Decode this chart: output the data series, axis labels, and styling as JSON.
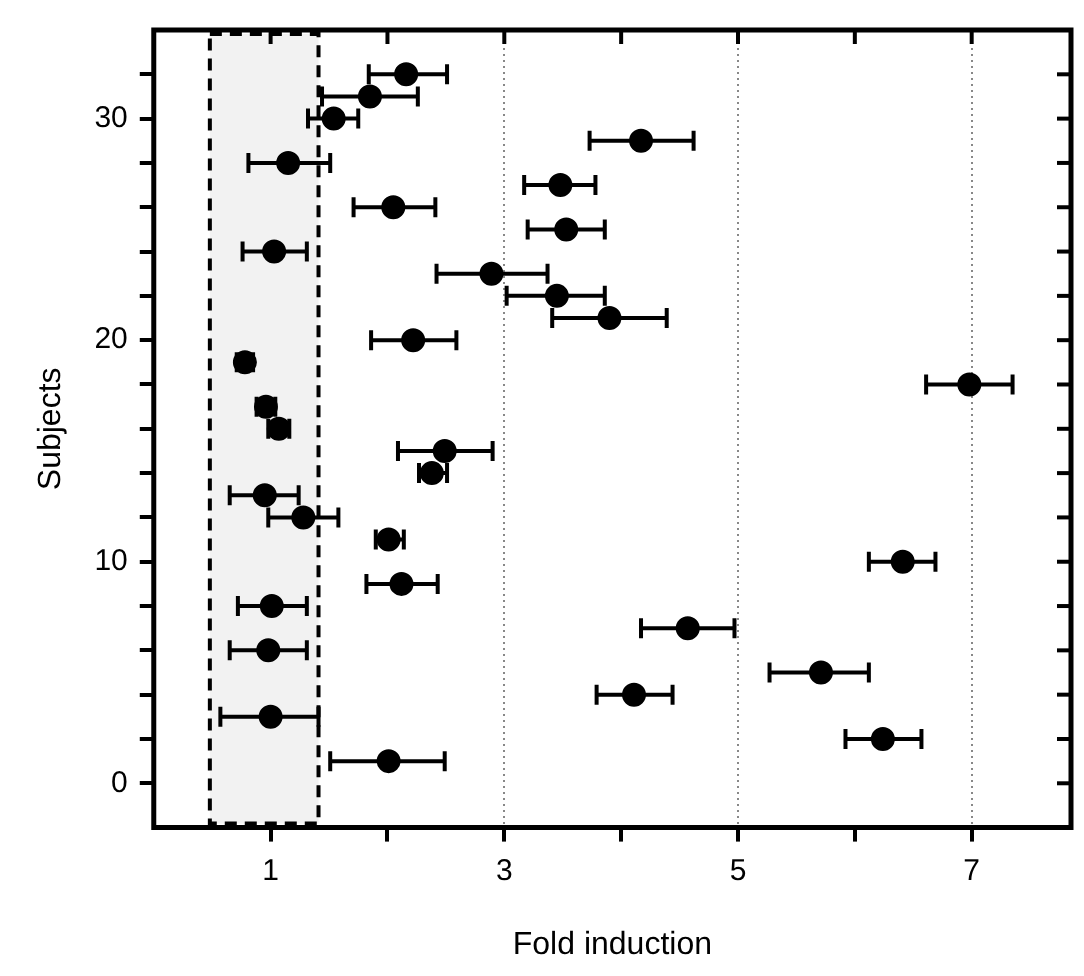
{
  "chart_data": {
    "type": "scatter",
    "xlabel": "Fold induction",
    "ylabel": "Subjects",
    "xlim": [
      0,
      7.85
    ],
    "ylim": [
      -2,
      34
    ],
    "xticks": [
      1,
      {
        "value": 2,
        "label": null
      },
      3,
      {
        "value": 4,
        "label": null
      },
      5,
      {
        "value": 6,
        "label": null
      },
      7
    ],
    "yticks": [
      0,
      {
        "value": 2,
        "label": null
      },
      {
        "value": 4,
        "label": null
      },
      {
        "value": 6,
        "label": null
      },
      {
        "value": 8,
        "label": null
      },
      10,
      {
        "value": 12,
        "label": null
      },
      {
        "value": 14,
        "label": null
      },
      {
        "value": 16,
        "label": null
      },
      {
        "value": 18,
        "label": null
      },
      20,
      {
        "value": 22,
        "label": null
      },
      {
        "value": 24,
        "label": null
      },
      {
        "value": 26,
        "label": null
      },
      {
        "value": 28,
        "label": null
      },
      30,
      {
        "value": 32,
        "label": null
      }
    ],
    "grid": "x",
    "marker": "circle",
    "legend": false,
    "bands": [
      {
        "axis": "x",
        "from": 0.48,
        "to": 1.41,
        "color": "#f2f2f2"
      }
    ],
    "series": [
      {
        "color": "#000000",
        "x": [
          2.01,
          6.24,
          1.0,
          4.11,
          5.71,
          0.98,
          4.57,
          1.01,
          2.12,
          6.41,
          2.01,
          1.28,
          0.95,
          2.38,
          2.49,
          1.07,
          0.96,
          6.98,
          0.78,
          2.22,
          3.9,
          3.45,
          2.89,
          1.03,
          3.53,
          2.05,
          3.48,
          1.15,
          4.17,
          1.54,
          1.85,
          2.16
        ],
        "values": [
          1,
          2,
          3,
          4,
          5,
          6,
          7,
          8,
          9,
          10,
          11,
          12,
          13,
          14,
          15,
          16,
          17,
          18,
          19,
          20,
          21,
          22,
          23,
          24,
          25,
          26,
          27,
          28,
          29,
          30,
          31,
          32
        ],
        "xerrors": [
          [
            1.51,
            2.49
          ],
          [
            5.92,
            6.57
          ],
          [
            0.57,
            1.41
          ],
          [
            3.79,
            4.44
          ],
          [
            5.27,
            6.12
          ],
          [
            0.65,
            1.31
          ],
          [
            4.17,
            4.97
          ],
          [
            0.72,
            1.31
          ],
          [
            1.82,
            2.43
          ],
          [
            6.12,
            6.69
          ],
          [
            1.9,
            2.14
          ],
          [
            0.98,
            1.58
          ],
          [
            0.65,
            1.24
          ],
          [
            2.27,
            2.51
          ],
          [
            2.09,
            2.9
          ],
          [
            0.98,
            1.16
          ],
          [
            0.88,
            1.04
          ],
          [
            6.61,
            7.35
          ],
          [
            0.71,
            0.85
          ],
          [
            1.86,
            2.59
          ],
          [
            3.41,
            4.39
          ],
          [
            3.02,
            3.86
          ],
          [
            2.42,
            3.37
          ],
          [
            0.76,
            1.31
          ],
          [
            3.2,
            3.86
          ],
          [
            1.71,
            2.41
          ],
          [
            3.17,
            3.78
          ],
          [
            0.81,
            1.51
          ],
          [
            3.73,
            4.62
          ],
          [
            1.32,
            1.75
          ],
          [
            1.44,
            2.26
          ],
          [
            1.84,
            2.51
          ]
        ]
      }
    ]
  }
}
